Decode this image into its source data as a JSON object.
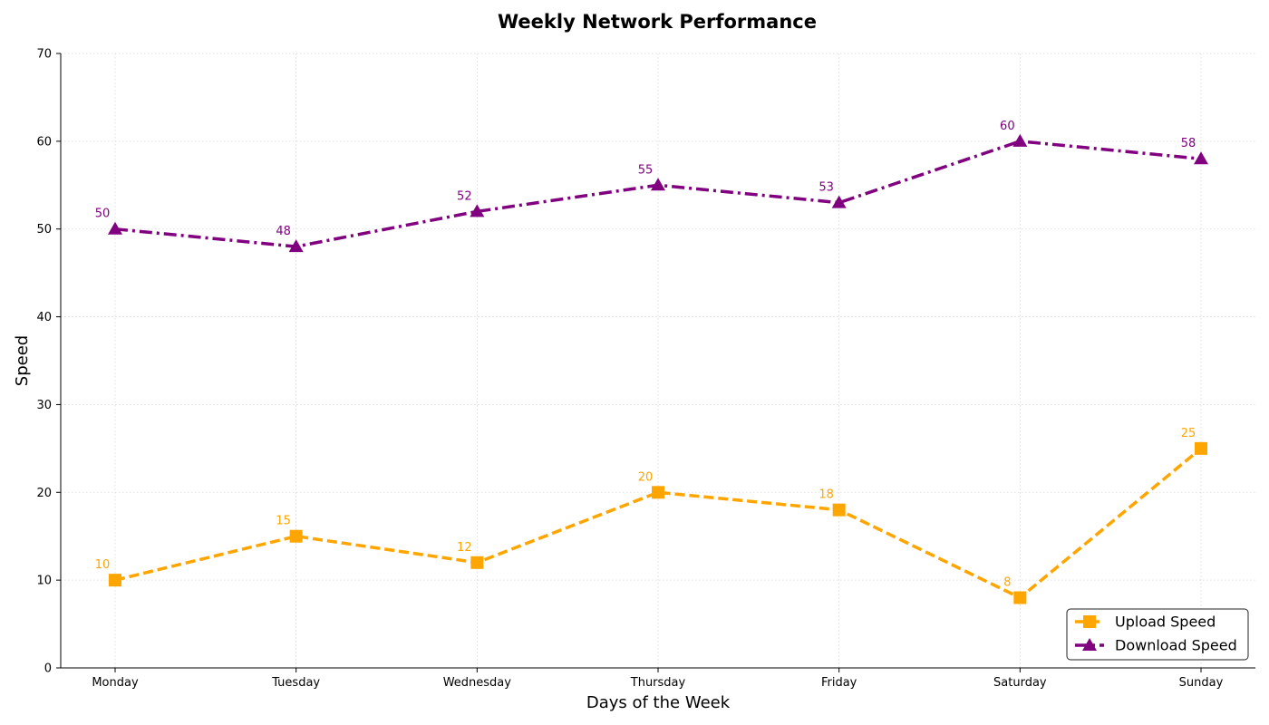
{
  "chart_data": {
    "type": "line",
    "title": "Weekly Network Performance",
    "xlabel": "Days of the Week",
    "ylabel": "Speed",
    "categories": [
      "Monday",
      "Tuesday",
      "Wednesday",
      "Thursday",
      "Friday",
      "Saturday",
      "Sunday"
    ],
    "ylim": [
      0,
      70
    ],
    "yticks": [
      0,
      10,
      20,
      30,
      40,
      50,
      60,
      70
    ],
    "grid": true,
    "legend_position": "bottom-right",
    "series": [
      {
        "name": "Upload Speed",
        "values": [
          10,
          15,
          12,
          20,
          18,
          8,
          25
        ],
        "color": "#FFA500",
        "marker": "square",
        "line_style": "dashed"
      },
      {
        "name": "Download Speed",
        "values": [
          50,
          48,
          52,
          55,
          53,
          60,
          58
        ],
        "color": "#800080",
        "marker": "triangle",
        "line_style": "dash-dot"
      }
    ]
  }
}
